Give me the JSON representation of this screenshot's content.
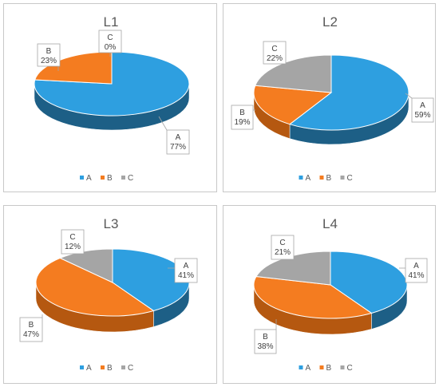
{
  "colors": {
    "A": "#2e9fe0",
    "B": "#f47c20",
    "C": "#a5a5a5",
    "A_side": "#1d5f86",
    "B_side": "#b55810",
    "C_side": "#6e6e6e"
  },
  "chart_data": [
    {
      "type": "pie",
      "title": "L1",
      "categories": [
        "A",
        "B",
        "C"
      ],
      "values": [
        77,
        23,
        0
      ],
      "labels": {
        "A": [
          "A",
          "77%"
        ],
        "B": [
          "B",
          "23%"
        ],
        "C": [
          "C",
          "0%"
        ]
      },
      "legend": [
        "A",
        "B",
        "C"
      ],
      "legend_position": "bottom"
    },
    {
      "type": "pie",
      "title": "L2",
      "categories": [
        "A",
        "B",
        "C"
      ],
      "values": [
        59,
        19,
        22
      ],
      "labels": {
        "A": [
          "A",
          "59%"
        ],
        "B": [
          "B",
          "19%"
        ],
        "C": [
          "C",
          "22%"
        ]
      },
      "legend": [
        "A",
        "B",
        "C"
      ],
      "legend_position": "bottom"
    },
    {
      "type": "pie",
      "title": "L3",
      "categories": [
        "A",
        "B",
        "C"
      ],
      "values": [
        41,
        47,
        12
      ],
      "labels": {
        "A": [
          "A",
          "41%"
        ],
        "B": [
          "B",
          "47%"
        ],
        "C": [
          "C",
          "12%"
        ]
      },
      "legend": [
        "A",
        "B",
        "C"
      ],
      "legend_position": "bottom"
    },
    {
      "type": "pie",
      "title": "L4",
      "categories": [
        "A",
        "B",
        "C"
      ],
      "values": [
        41,
        38,
        21
      ],
      "labels": {
        "A": [
          "A",
          "41%"
        ],
        "B": [
          "B",
          "38%"
        ],
        "C": [
          "C",
          "21%"
        ]
      },
      "legend": [
        "A",
        "B",
        "C"
      ],
      "legend_position": "bottom"
    }
  ]
}
